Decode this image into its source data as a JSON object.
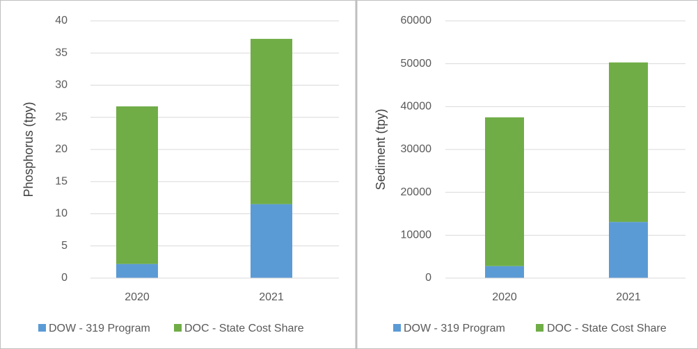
{
  "chart_data": [
    {
      "type": "bar",
      "stacked": true,
      "y_label": "Phosphorus (tpy)",
      "categories": [
        "2020",
        "2021"
      ],
      "series": [
        {
          "name": "DOW - 319 Program",
          "color": "#5b9bd5",
          "values": [
            2.2,
            11.5
          ]
        },
        {
          "name": "DOC - State Cost Share",
          "color": "#70ad47",
          "values": [
            24.5,
            25.7
          ]
        }
      ],
      "ylim": [
        0,
        40
      ],
      "yticks": [
        0,
        5,
        10,
        15,
        20,
        25,
        30,
        35,
        40
      ],
      "grid": true,
      "legend": "bottom"
    },
    {
      "type": "bar",
      "stacked": true,
      "y_label": "Sediment (tpy)",
      "categories": [
        "2020",
        "2021"
      ],
      "series": [
        {
          "name": "DOW - 319 Program",
          "color": "#5b9bd5",
          "values": [
            2800,
            13100
          ]
        },
        {
          "name": "DOC - State Cost Share",
          "color": "#70ad47",
          "values": [
            34700,
            37200
          ]
        }
      ],
      "ylim": [
        0,
        60000
      ],
      "yticks": [
        0,
        10000,
        20000,
        30000,
        40000,
        50000,
        60000
      ],
      "grid": true,
      "legend": "bottom"
    }
  ]
}
